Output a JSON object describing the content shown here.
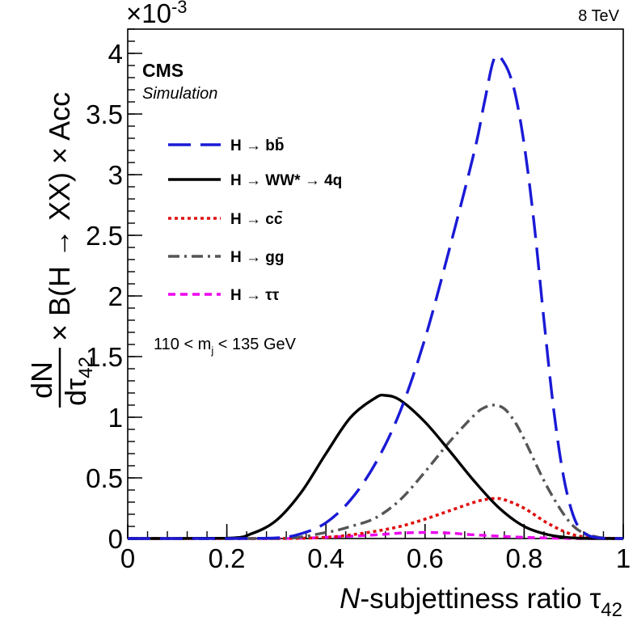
{
  "chart_data": {
    "type": "line",
    "energy_label": "8 TeV",
    "experiment": "CMS",
    "subtitle": "Simulation",
    "cut_label": "110 < m",
    "cut_sub": "j",
    "cut_tail": " < 135 GeV",
    "exponent_label": "×10",
    "exponent_power": "-3",
    "xlabel_italic": "N",
    "xlabel_main": "-subjettiness ratio τ",
    "xlabel_sub": "42",
    "ylabel": "× B(H → XX) × Acc",
    "ylabel_frac_num": "dN",
    "ylabel_frac_den": "dτ",
    "ylabel_frac_sub": "42",
    "xlim": [
      0,
      1
    ],
    "ylim": [
      0,
      4.2
    ],
    "x_ticks": [
      0,
      0.2,
      0.4,
      0.6,
      0.8,
      1
    ],
    "x_tick_labels": [
      "0",
      "0.2",
      "0.4",
      "0.6",
      "0.8",
      "1"
    ],
    "y_ticks": [
      0,
      0.5,
      1,
      1.5,
      2,
      2.5,
      3,
      3.5,
      4
    ],
    "y_tick_labels": [
      "0",
      "0.5",
      "1",
      "1.5",
      "2",
      "2.5",
      "3",
      "3.5",
      "4"
    ],
    "x_minor_step": 0.04,
    "y_minor_step": 0.1,
    "series": [
      {
        "name": "H → bb̄",
        "color": "#1a1ad6",
        "dash": "long-dash",
        "x": [
          0,
          0.2,
          0.3,
          0.35,
          0.4,
          0.45,
          0.5,
          0.55,
          0.6,
          0.65,
          0.7,
          0.72,
          0.74,
          0.76,
          0.78,
          0.8,
          0.82,
          0.84,
          0.86,
          0.88,
          0.9,
          0.92,
          0.95,
          1.0
        ],
        "y": [
          0,
          0,
          0.005,
          0.04,
          0.13,
          0.32,
          0.62,
          1.05,
          1.65,
          2.4,
          3.2,
          3.6,
          3.96,
          3.92,
          3.7,
          3.25,
          2.6,
          1.8,
          1.05,
          0.5,
          0.18,
          0.05,
          0.005,
          0
        ]
      },
      {
        "name": "H → WW* → 4q",
        "color": "#000000",
        "dash": "solid",
        "x": [
          0,
          0.2,
          0.25,
          0.3,
          0.35,
          0.4,
          0.45,
          0.5,
          0.52,
          0.55,
          0.6,
          0.65,
          0.7,
          0.75,
          0.8,
          0.85,
          0.9,
          0.95,
          1.0
        ],
        "y": [
          0,
          0.003,
          0.04,
          0.15,
          0.38,
          0.7,
          1.0,
          1.16,
          1.18,
          1.14,
          0.96,
          0.72,
          0.47,
          0.25,
          0.1,
          0.03,
          0.005,
          0,
          0
        ]
      },
      {
        "name": "H → cc̄",
        "color": "#e01010",
        "dash": "dotted",
        "x": [
          0,
          0.3,
          0.4,
          0.45,
          0.5,
          0.55,
          0.6,
          0.65,
          0.7,
          0.72,
          0.74,
          0.76,
          0.8,
          0.85,
          0.9,
          0.95,
          1.0
        ],
        "y": [
          0,
          0,
          0.01,
          0.03,
          0.06,
          0.1,
          0.16,
          0.23,
          0.3,
          0.32,
          0.33,
          0.32,
          0.25,
          0.12,
          0.03,
          0.005,
          0
        ]
      },
      {
        "name": "H → gg",
        "color": "#555555",
        "dash": "dash-dot",
        "x": [
          0,
          0.3,
          0.4,
          0.45,
          0.5,
          0.55,
          0.6,
          0.65,
          0.7,
          0.72,
          0.74,
          0.76,
          0.78,
          0.8,
          0.85,
          0.9,
          0.95,
          1.0
        ],
        "y": [
          0,
          0,
          0.05,
          0.1,
          0.17,
          0.32,
          0.55,
          0.8,
          1.02,
          1.08,
          1.1,
          1.07,
          0.97,
          0.82,
          0.4,
          0.1,
          0.01,
          0
        ]
      },
      {
        "name": "H → ττ",
        "color": "#ee00ee",
        "dash": "short-dash",
        "x": [
          0,
          0.3,
          0.4,
          0.5,
          0.55,
          0.6,
          0.65,
          0.7,
          0.8,
          0.9,
          1.0
        ],
        "y": [
          0,
          0,
          0.01,
          0.03,
          0.045,
          0.05,
          0.045,
          0.03,
          0.01,
          0,
          0
        ]
      }
    ]
  }
}
